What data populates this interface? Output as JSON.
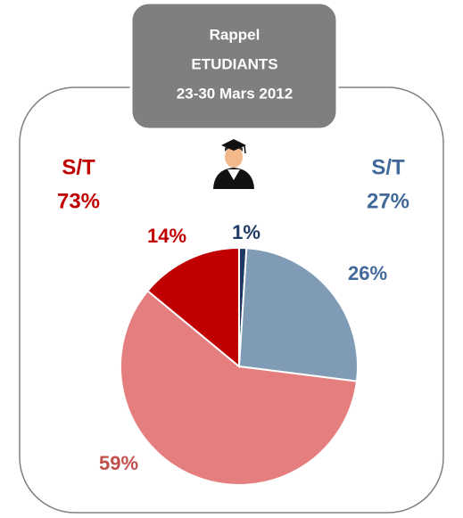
{
  "chart_data": {
    "type": "pie",
    "title_lines": [
      "Rappel",
      "ETUDIANTS",
      "23-30 Mars 2012"
    ],
    "annotations": [
      {
        "lines": [
          "S/T",
          "73%"
        ],
        "color": "#c00000"
      },
      {
        "lines": [
          "S/T",
          "27%"
        ],
        "color": "#41699a"
      }
    ],
    "values": [
      1,
      26,
      59,
      14
    ],
    "value_labels": [
      "1%",
      "26%",
      "59%",
      "14%"
    ],
    "colors": [
      "#1f3864",
      "#7f9bb5",
      "#e57f7f",
      "#c00000"
    ]
  }
}
